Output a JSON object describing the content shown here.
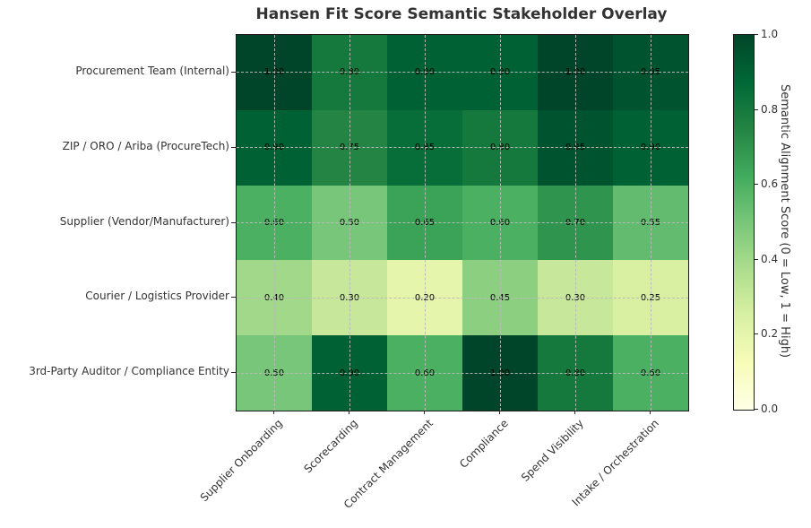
{
  "chart_data": {
    "type": "heatmap",
    "title": "Hansen Fit Score Semantic Stakeholder Overlay",
    "rows": [
      "Procurement Team (Internal)",
      "ZIP / ORO / Ariba (ProcureTech)",
      "Supplier (Vendor/Manufacturer)",
      "Courier / Logistics Provider",
      "3rd-Party Auditor / Compliance Entity"
    ],
    "columns": [
      "Supplier Onboarding",
      "Scorecarding",
      "Contract Management",
      "Compliance",
      "Spend Visibility",
      "Intake / Orchestration"
    ],
    "values": [
      [
        1.0,
        0.8,
        0.9,
        0.9,
        1.0,
        0.95
      ],
      [
        0.9,
        0.75,
        0.85,
        0.8,
        0.95,
        0.9
      ],
      [
        0.6,
        0.5,
        0.65,
        0.6,
        0.7,
        0.55
      ],
      [
        0.4,
        0.3,
        0.2,
        0.45,
        0.3,
        0.25
      ],
      [
        0.5,
        0.9,
        0.6,
        1.0,
        0.8,
        0.6
      ]
    ],
    "value_decimals": 2,
    "vmin": 0,
    "vmax": 1,
    "grid": {
      "on": true,
      "style": "dashed"
    },
    "colorbar": {
      "label": "Semantic Alignment Score (0 = Low, 1 = High)",
      "ticks": [
        0.0,
        0.2,
        0.4,
        0.6,
        0.8,
        1.0
      ],
      "tick_decimals": 1
    },
    "colormap": {
      "name": "YlGn",
      "stops": [
        [
          0.0,
          "#ffffe5"
        ],
        [
          0.125,
          "#f7fcb9"
        ],
        [
          0.25,
          "#d9f0a3"
        ],
        [
          0.375,
          "#addd8e"
        ],
        [
          0.5,
          "#78c679"
        ],
        [
          0.625,
          "#41ab5d"
        ],
        [
          0.75,
          "#238443"
        ],
        [
          0.875,
          "#006837"
        ],
        [
          1.0,
          "#004529"
        ]
      ]
    }
  }
}
